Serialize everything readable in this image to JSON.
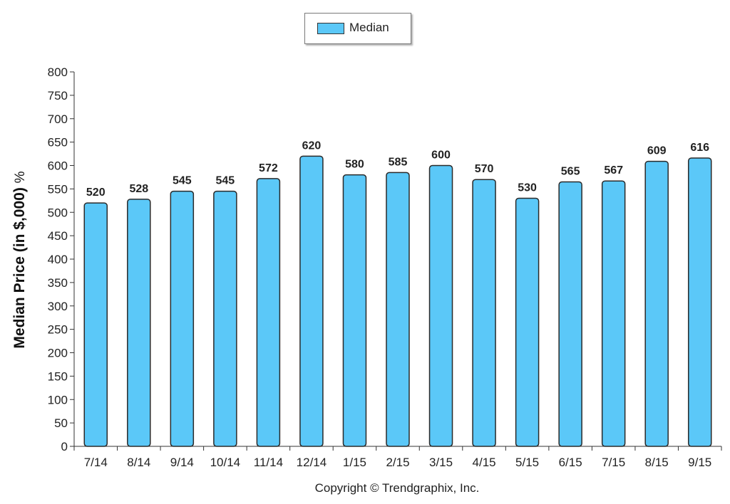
{
  "legend": {
    "label": "Median"
  },
  "copyright": "Copyright © Trendgraphix, Inc.",
  "chart_data": {
    "type": "bar",
    "title": "",
    "xlabel": "",
    "ylabel": "Median Price (in $,000)",
    "ylabel_unit": "%",
    "categories": [
      "7/14",
      "8/14",
      "9/14",
      "10/14",
      "11/14",
      "12/14",
      "1/15",
      "2/15",
      "3/15",
      "4/15",
      "5/15",
      "6/15",
      "7/15",
      "8/15",
      "9/15"
    ],
    "series": [
      {
        "name": "Median",
        "values": [
          520,
          528,
          545,
          545,
          572,
          620,
          580,
          585,
          600,
          570,
          530,
          565,
          567,
          609,
          616
        ]
      }
    ],
    "ylim": [
      0,
      800
    ],
    "yticks": [
      0,
      50,
      100,
      150,
      200,
      250,
      300,
      350,
      400,
      450,
      500,
      550,
      600,
      650,
      700,
      750,
      800
    ],
    "grid": false,
    "legend_position": "top-center",
    "bar_color": "#5bc8f8",
    "bar_border_color": "#2a2a2a"
  }
}
